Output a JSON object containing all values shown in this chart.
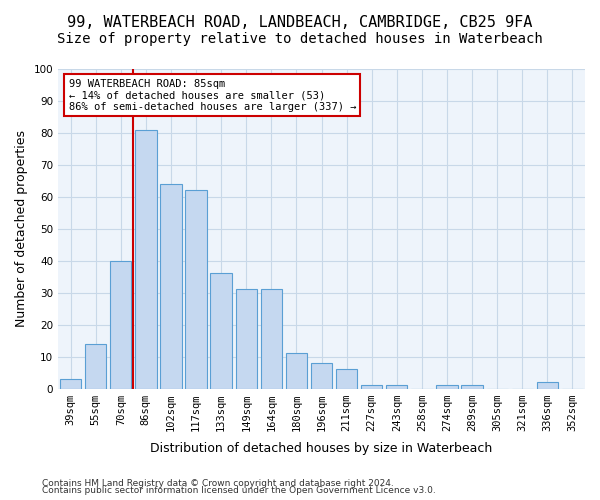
{
  "title_line1": "99, WATERBEACH ROAD, LANDBEACH, CAMBRIDGE, CB25 9FA",
  "title_line2": "Size of property relative to detached houses in Waterbeach",
  "xlabel": "Distribution of detached houses by size in Waterbeach",
  "ylabel": "Number of detached properties",
  "categories": [
    "39sqm",
    "55sqm",
    "70sqm",
    "86sqm",
    "102sqm",
    "117sqm",
    "133sqm",
    "149sqm",
    "164sqm",
    "180sqm",
    "196sqm",
    "211sqm",
    "227sqm",
    "243sqm",
    "258sqm",
    "274sqm",
    "289sqm",
    "305sqm",
    "321sqm",
    "336sqm",
    "352sqm"
  ],
  "values": [
    3,
    14,
    40,
    81,
    64,
    62,
    36,
    31,
    31,
    11,
    8,
    6,
    1,
    1,
    0,
    1,
    1,
    0,
    0,
    2,
    0
  ],
  "bar_color": "#c5d8f0",
  "bar_edge_color": "#5a9fd4",
  "annotation_text": "99 WATERBEACH ROAD: 85sqm\n← 14% of detached houses are smaller (53)\n86% of semi-detached houses are larger (337) →",
  "annotation_box_color": "#ffffff",
  "annotation_box_edge_color": "#cc0000",
  "vline_color": "#cc0000",
  "vline_x": 2.5,
  "grid_color": "#c8d8e8",
  "background_color": "#eef4fb",
  "footnote1": "Contains HM Land Registry data © Crown copyright and database right 2024.",
  "footnote2": "Contains public sector information licensed under the Open Government Licence v3.0.",
  "ylim": [
    0,
    100
  ],
  "title_fontsize": 11,
  "subtitle_fontsize": 10,
  "tick_fontsize": 7.5,
  "ylabel_fontsize": 9,
  "xlabel_fontsize": 9
}
